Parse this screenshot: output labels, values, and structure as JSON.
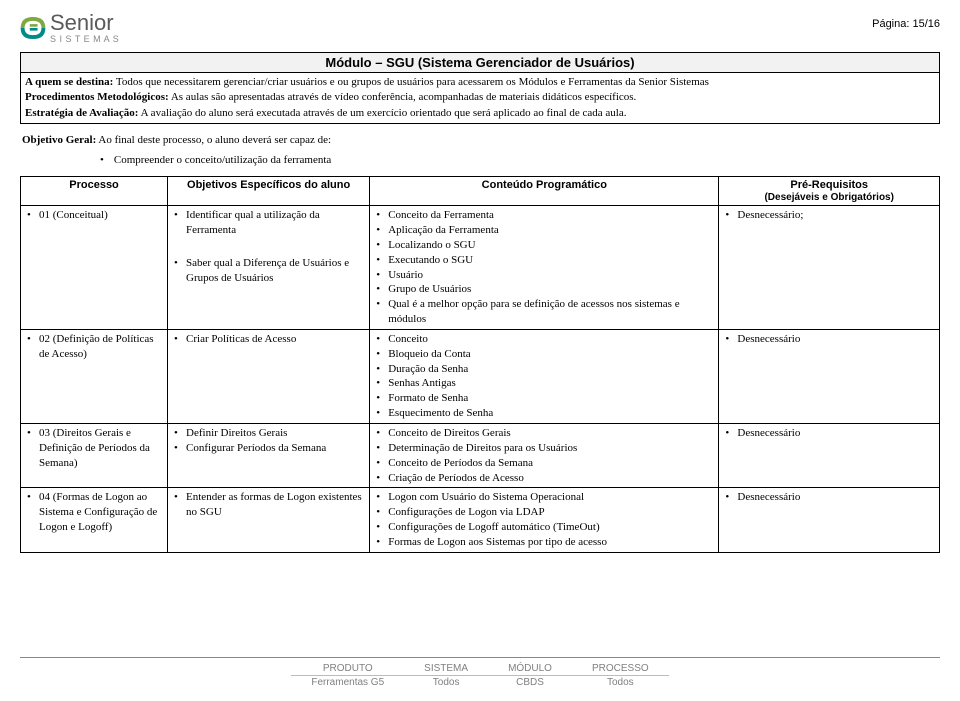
{
  "page_label": "Página: 15/16",
  "logo": {
    "brand": "Senior",
    "sub": "S I S T E M A S"
  },
  "title": "Módulo – SGU (Sistema Gerenciador de Usuários)",
  "info": {
    "destina_label": "A quem se destina:",
    "destina_text": " Todos que necessitarem gerenciar/criar usuários e ou grupos de usuários para acessarem os Módulos e Ferramentas da Senior Sistemas",
    "proced_label": "Procedimentos Metodológicos:",
    "proced_text": " As aulas são apresentadas através de vídeo conferência, acompanhadas de materiais didáticos específicos.",
    "estrat_label": "Estratégia de Avaliação:",
    "estrat_text": " A avaliação do aluno será executada através de um exercício orientado que será aplicado ao final de cada  aula."
  },
  "objetivo_geral_label": "Objetivo Geral:",
  "objetivo_geral_text": " Ao final deste processo, o aluno deverá ser capaz de:",
  "objetivo_bullet": "Compreender o conceito/utilização da ferramenta",
  "table": {
    "headers": {
      "processo": "Processo",
      "objetivos": "Objetivos Específicos do aluno",
      "conteudo": "Conteúdo Programático",
      "pre": "Pré-Requisitos",
      "pre_sub": "(Desejáveis e Obrigatórios)"
    },
    "rows": [
      {
        "proc": "01 (Conceitual)",
        "obj": [
          "Identificar qual a utilização da Ferramenta",
          "Saber qual a Diferença de Usuários e Grupos de Usuários"
        ],
        "cont": [
          "Conceito da Ferramenta",
          "Aplicação da Ferramenta",
          "Localizando o SGU",
          "Executando o SGU",
          "Usuário",
          "Grupo de Usuários",
          "Qual é a melhor opção para se definição de acessos nos sistemas e módulos"
        ],
        "pre": [
          "Desnecessário;"
        ]
      },
      {
        "proc": "02 (Definição de Políticas de Acesso)",
        "obj": [
          "Criar Políticas de Acesso"
        ],
        "cont": [
          "Conceito",
          "Bloqueio da Conta",
          "Duração da Senha",
          "Senhas Antigas",
          "Formato de Senha",
          "Esquecimento de Senha"
        ],
        "pre": [
          "Desnecessário"
        ]
      },
      {
        "proc": "03 (Direitos Gerais e Definição de Períodos da Semana)",
        "obj": [
          "Definir Direitos Gerais",
          "Configurar Períodos da Semana"
        ],
        "cont": [
          "Conceito de Direitos Gerais",
          "Determinação de Direitos para os Usuários",
          "Conceito de Períodos da Semana",
          "Criação de Períodos de Acesso"
        ],
        "pre": [
          "Desnecessário"
        ]
      },
      {
        "proc": "04 (Formas de Logon ao Sistema e Configuração de Logon e Logoff)",
        "obj": [
          "Entender as formas de Logon existentes no SGU"
        ],
        "cont": [
          "Logon com Usuário do Sistema Operacional",
          "Configurações de Logon via LDAP",
          "Configurações de Logoff automático (TimeOut)",
          "Formas de Logon aos Sistemas por tipo de acesso"
        ],
        "pre": [
          "Desnecessário"
        ]
      }
    ]
  },
  "footer": {
    "h": [
      "PRODUTO",
      "SISTEMA",
      "MÓDULO",
      "PROCESSO"
    ],
    "v": [
      "Ferramentas G5",
      "Todos",
      "CBDS",
      "Todos"
    ]
  }
}
